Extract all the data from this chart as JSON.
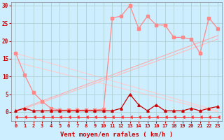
{
  "xlabel": "Vent moyen/en rafales ( km/h )",
  "background_color": "#cceeff",
  "grid_color": "#aacccc",
  "xlim": [
    -0.5,
    23.5
  ],
  "ylim": [
    -2.5,
    31
  ],
  "xticks": [
    0,
    1,
    2,
    3,
    4,
    5,
    6,
    7,
    8,
    9,
    10,
    11,
    12,
    13,
    14,
    15,
    16,
    17,
    18,
    19,
    20,
    21,
    22,
    23
  ],
  "yticks": [
    0,
    5,
    10,
    15,
    20,
    25,
    30
  ],
  "line_rafales": {
    "x": [
      0,
      1,
      2,
      3,
      4,
      5,
      6,
      7,
      8,
      9,
      10,
      11,
      12,
      13,
      14,
      15,
      16,
      17,
      18,
      19,
      20,
      21,
      22,
      23
    ],
    "y": [
      16.5,
      10.5,
      5.5,
      3.0,
      1.0,
      0.5,
      0.5,
      0.5,
      0.5,
      0.5,
      0.8,
      26.5,
      27.0,
      30.0,
      23.5,
      27.0,
      24.5,
      24.5,
      21.0,
      21.0,
      20.5,
      16.5,
      26.5,
      23.5
    ],
    "color": "#ff8888",
    "linewidth": 0.9,
    "marker": "s",
    "markersize": 2.5
  },
  "line_moyen": {
    "x": [
      0,
      1,
      2,
      3,
      4,
      5,
      6,
      7,
      8,
      9,
      10,
      11,
      12,
      13,
      14,
      15,
      16,
      17,
      18,
      19,
      20,
      21,
      22,
      23
    ],
    "y": [
      0.3,
      1.0,
      0.3,
      0.3,
      0.3,
      0.3,
      0.3,
      0.3,
      0.3,
      0.3,
      0.3,
      0.3,
      1.0,
      5.0,
      2.0,
      0.3,
      2.0,
      0.3,
      0.3,
      0.3,
      1.0,
      0.3,
      1.0,
      1.5
    ],
    "color": "#cc0000",
    "linewidth": 0.9,
    "marker": "^",
    "markersize": 2.5
  },
  "line_trend1": {
    "x": [
      0,
      23
    ],
    "y": [
      0.3,
      21.5
    ],
    "color": "#ffaaaa",
    "linewidth": 0.8
  },
  "line_trend2": {
    "x": [
      0,
      23
    ],
    "y": [
      0.0,
      20.5
    ],
    "color": "#ffbbbb",
    "linewidth": 0.8
  },
  "line_trend3": {
    "x": [
      0,
      23
    ],
    "y": [
      16.5,
      0.3
    ],
    "color": "#ffcccc",
    "linewidth": 0.8
  },
  "line_trend4": {
    "x": [
      0,
      23
    ],
    "y": [
      14.0,
      0.0
    ],
    "color": "#ffcccc",
    "linewidth": 0.8
  },
  "line_arrows": {
    "x": [
      0,
      1,
      2,
      3,
      4,
      5,
      6,
      7,
      8,
      9,
      10,
      11,
      12,
      13,
      14,
      15,
      16,
      17,
      18,
      19,
      20,
      21,
      22,
      23
    ],
    "y": [
      -1.5,
      -1.5,
      -1.5,
      -1.5,
      -1.5,
      -1.5,
      -1.5,
      -1.5,
      -1.5,
      -1.5,
      -1.5,
      -1.5,
      -1.5,
      -1.5,
      -1.5,
      -1.5,
      -1.5,
      -1.5,
      -1.5,
      -1.5,
      -1.5,
      -1.5,
      -1.5,
      -1.5
    ],
    "color": "#ff3333",
    "linewidth": 0.7,
    "marker": 4,
    "markersize": 3.0
  }
}
